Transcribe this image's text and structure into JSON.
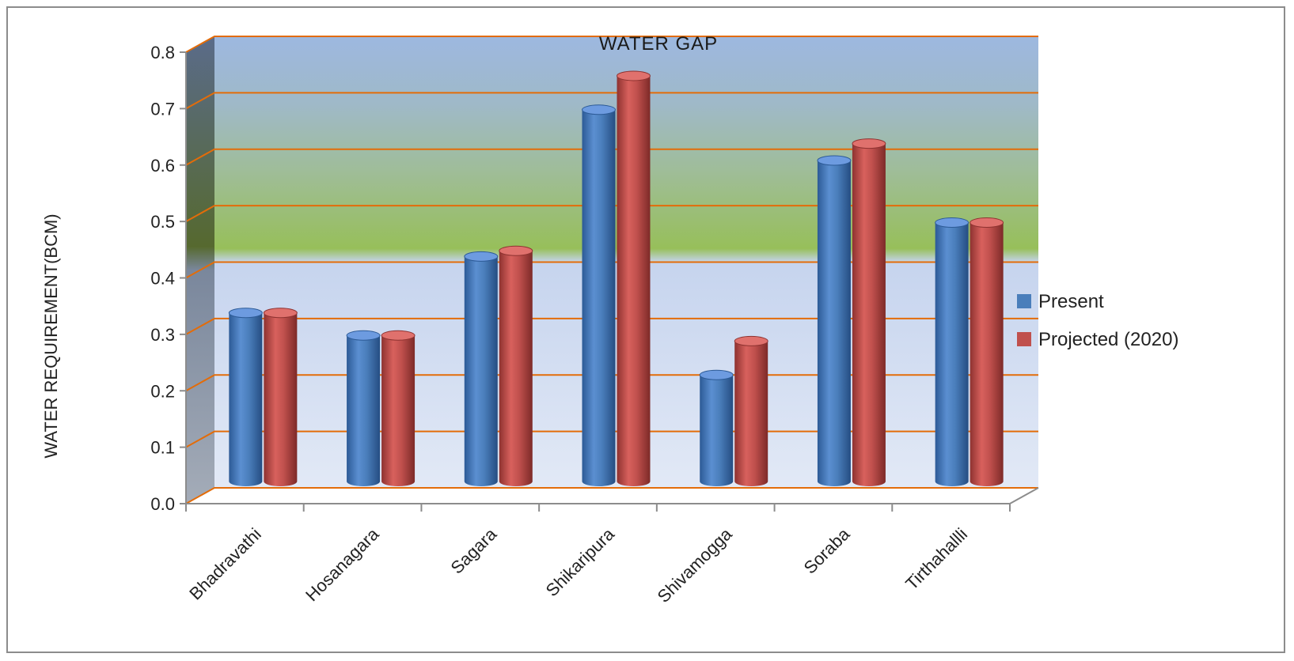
{
  "chart_data": {
    "type": "bar",
    "title": "WATER  GAP",
    "ylabel": "WATER REQUIREMENT(BCM)",
    "xlabel": "",
    "categories": [
      "Bhadravathi",
      "Hosanagara",
      "Sagara",
      "Shikaripura",
      "Shivamogga",
      "Soraba",
      "Tirthahallli"
    ],
    "series": [
      {
        "name": "Present",
        "color": "#4a7ebb",
        "values": [
          0.31,
          0.27,
          0.41,
          0.67,
          0.2,
          0.58,
          0.47
        ]
      },
      {
        "name": "Projected (2020)",
        "color": "#c0504d",
        "values": [
          0.31,
          0.27,
          0.42,
          0.73,
          0.26,
          0.61,
          0.47
        ]
      }
    ],
    "ylim": [
      0,
      0.8
    ],
    "yticks": [
      "0.0",
      "0.1",
      "0.2",
      "0.3",
      "0.4",
      "0.5",
      "0.6",
      "0.7",
      "0.8"
    ],
    "grid": true,
    "legend": "right",
    "style": "3d-cylinder"
  }
}
